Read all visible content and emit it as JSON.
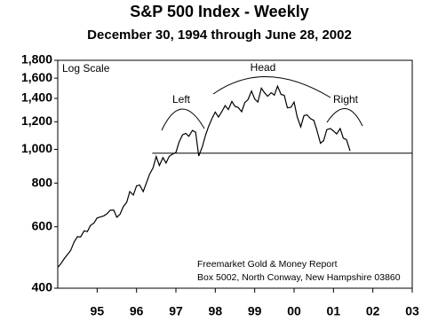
{
  "chart_data": {
    "type": "line",
    "title": "S&P 500 Index - Weekly",
    "subtitle": "December 30, 1994 through June 28, 2002",
    "log_scale": true,
    "scale_note": "Log Scale",
    "annotations": [
      "Left",
      "Head",
      "Right"
    ],
    "source": [
      "Freemarket Gold & Money Report",
      "Box 5002, North Conway, New Hampshire 03860"
    ],
    "neckline": {
      "y": 975,
      "x": [
        1997.4,
        2004
      ]
    },
    "xlim": [
      1995,
      2004
    ],
    "xticks": [
      {
        "value": 1996,
        "label": "95"
      },
      {
        "value": 1997,
        "label": "96"
      },
      {
        "value": 1998,
        "label": "97"
      },
      {
        "value": 1999,
        "label": "98"
      },
      {
        "value": 2000,
        "label": "99"
      },
      {
        "value": 2001,
        "label": "00"
      },
      {
        "value": 2002,
        "label": "01"
      },
      {
        "value": 2003,
        "label": "02"
      },
      {
        "value": 2004,
        "label": "03"
      }
    ],
    "ylim": [
      400,
      1800
    ],
    "yticks": [
      400,
      600,
      800,
      {
        "value": 1000,
        "label": "1,000"
      },
      {
        "value": 1200,
        "label": "1,200"
      },
      {
        "value": 1400,
        "label": "1,400"
      },
      {
        "value": 1600,
        "label": "1,600"
      },
      {
        "value": 1800,
        "label": "1,800"
      }
    ],
    "x": [
      1995,
      1995.08,
      1995.17,
      1995.25,
      1995.33,
      1995.42,
      1995.5,
      1995.58,
      1995.67,
      1995.75,
      1995.83,
      1995.92,
      1996,
      1996.08,
      1996.17,
      1996.25,
      1996.33,
      1996.42,
      1996.5,
      1996.58,
      1996.67,
      1996.75,
      1996.83,
      1996.92,
      1997,
      1997.08,
      1997.17,
      1997.25,
      1997.33,
      1997.42,
      1997.5,
      1997.58,
      1997.67,
      1997.75,
      1997.83,
      1997.92,
      1998,
      1998.08,
      1998.17,
      1998.25,
      1998.33,
      1998.42,
      1998.5,
      1998.58,
      1998.67,
      1998.75,
      1998.83,
      1998.92,
      1999,
      1999.08,
      1999.17,
      1999.25,
      1999.33,
      1999.42,
      1999.5,
      1999.58,
      1999.67,
      1999.75,
      1999.83,
      1999.92,
      2000,
      2000.08,
      2000.17,
      2000.25,
      2000.33,
      2000.42,
      2000.5,
      2000.58,
      2000.67,
      2000.75,
      2000.83,
      2000.92,
      2001,
      2001.08,
      2001.17,
      2001.25,
      2001.33,
      2001.42,
      2001.5,
      2001.58,
      2001.67,
      2001.75,
      2001.83,
      2001.92,
      2002,
      2002.08,
      2002.17,
      2002.25,
      2002.33,
      2002.42
    ],
    "series": [
      {
        "color": "#000000",
        "values": [
          459,
          470,
          487,
          500,
          514,
          544,
          562,
          561,
          584,
          581,
          605,
          615,
          636,
          640,
          645,
          654,
          669,
          670,
          639,
          651,
          687,
          705,
          757,
          740,
          786,
          790,
          757,
          801,
          848,
          885,
          954,
          899,
          947,
          914,
          955,
          970,
          980,
          1049,
          1101,
          1111,
          1090,
          1133,
          1120,
          957,
          1017,
          1098,
          1163,
          1229,
          1279,
          1238,
          1286,
          1335,
          1301,
          1372,
          1328,
          1320,
          1282,
          1362,
          1388,
          1469,
          1394,
          1366,
          1498,
          1452,
          1420,
          1454,
          1430,
          1517,
          1436,
          1429,
          1315,
          1320,
          1366,
          1240,
          1160,
          1249,
          1256,
          1224,
          1211,
          1134,
          1041,
          1060,
          1139,
          1148,
          1130,
          1107,
          1147,
          1077,
          1067,
          990
        ]
      }
    ]
  }
}
